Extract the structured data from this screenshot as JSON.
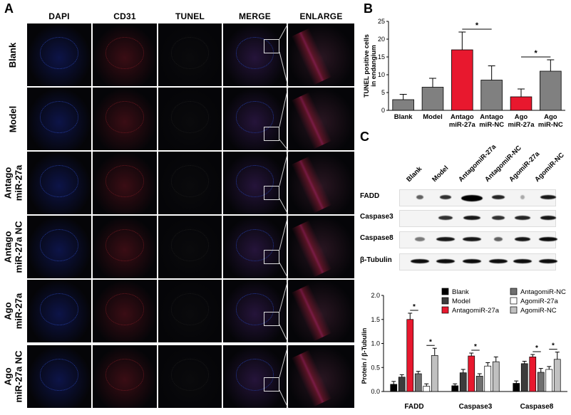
{
  "panels": {
    "a": "A",
    "b": "B",
    "c": "C"
  },
  "columns": [
    "DAPI",
    "CD31",
    "TUNEL",
    "MERGE",
    "ENLARGE"
  ],
  "rows": [
    {
      "label": [
        "Blank"
      ]
    },
    {
      "label": [
        "Model"
      ]
    },
    {
      "label": [
        "Antago",
        "miR-27a"
      ]
    },
    {
      "label": [
        "Antago",
        "miR-27a NC"
      ]
    },
    {
      "label": [
        "Ago",
        "miR-27a"
      ]
    },
    {
      "label": [
        "Ago",
        "miR-27a NC"
      ]
    }
  ],
  "wb": {
    "lane_labels": [
      "Blank",
      "Model",
      "AntagomiR-27a",
      "AntagomiR-NC",
      "AgomiR-27a",
      "AgomiR-NC"
    ],
    "proteins": [
      "FADD",
      "Caspase3",
      "Caspase8",
      "β-Tubulin"
    ]
  },
  "chart_data": [
    {
      "type": "bar",
      "ylabel": "TUNEL positive cells in endangium",
      "categories": [
        [
          "Blank"
        ],
        [
          "Model"
        ],
        [
          "Antago",
          "miR-27a"
        ],
        [
          "Antago",
          "miR-NC"
        ],
        [
          "Ago",
          "miR-27a"
        ],
        [
          "Ago",
          "miR-NC"
        ]
      ],
      "values": [
        3,
        6.5,
        17,
        8.5,
        3.8,
        11
      ],
      "errors": [
        1.5,
        2.5,
        5,
        4,
        2.2,
        3.2
      ],
      "colors": [
        "#808080",
        "#808080",
        "#e8182e",
        "#808080",
        "#e8182e",
        "#808080"
      ],
      "ylim": [
        0,
        25
      ],
      "yticks": [
        0,
        5,
        10,
        15,
        20,
        25
      ],
      "significance": [
        {
          "pair": [
            2,
            3
          ],
          "label": "*"
        },
        {
          "pair": [
            4,
            5
          ],
          "label": "*"
        }
      ]
    },
    {
      "type": "bar",
      "ylabel": "Protein / β-Tubulin",
      "groups": [
        "FADD",
        "Caspase3",
        "Caspase8"
      ],
      "ylim": [
        0,
        2.0
      ],
      "yticks": [
        "0.0",
        "0.5",
        "1.0",
        "1.5",
        "2.0"
      ],
      "series": [
        {
          "name": "Blank",
          "color": "#000000",
          "values": [
            0.15,
            0.12,
            0.17
          ],
          "errors": [
            0.06,
            0.04,
            0.05
          ]
        },
        {
          "name": "Model",
          "color": "#3c3c3c",
          "values": [
            0.3,
            0.39,
            0.58
          ],
          "errors": [
            0.05,
            0.07,
            0.05
          ]
        },
        {
          "name": "AntagomiR-27a",
          "color": "#e8182e",
          "values": [
            1.5,
            0.74,
            0.72
          ],
          "errors": [
            0.13,
            0.06,
            0.05
          ]
        },
        {
          "name": "AntagomiR-NC",
          "color": "#707070",
          "values": [
            0.37,
            0.32,
            0.4
          ],
          "errors": [
            0.05,
            0.05,
            0.08
          ]
        },
        {
          "name": "AgomiR-27a",
          "color": "#ffffff",
          "values": [
            0.11,
            0.53,
            0.46
          ],
          "errors": [
            0.05,
            0.07,
            0.06
          ]
        },
        {
          "name": "AgomiR-NC",
          "color": "#c0c0c0",
          "values": [
            0.75,
            0.62,
            0.67
          ],
          "errors": [
            0.15,
            0.1,
            0.15
          ]
        }
      ],
      "significance": [
        {
          "group": 0,
          "pair": [
            2,
            3
          ],
          "label": "*"
        },
        {
          "group": 0,
          "pair": [
            4,
            5
          ],
          "label": "*"
        },
        {
          "group": 1,
          "pair": [
            2,
            3
          ],
          "label": "*"
        },
        {
          "group": 2,
          "pair": [
            2,
            3
          ],
          "label": "*"
        },
        {
          "group": 2,
          "pair": [
            4,
            5
          ],
          "label": "*"
        }
      ]
    }
  ]
}
